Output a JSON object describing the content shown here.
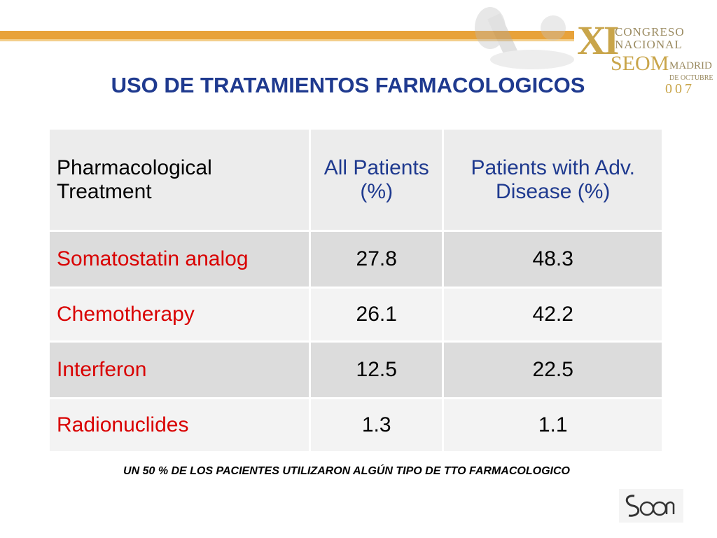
{
  "congress": {
    "roman": "XI",
    "line1": "CONGRESO",
    "line2": "NACIONAL",
    "society": "SEOM",
    "city": "MADRID",
    "date": "DE OCTUBRE",
    "year": "007"
  },
  "title": "USO DE TRATAMIENTOS FARMACOLOGICOS",
  "table": {
    "headers": [
      "Pharmacological Treatment",
      "All Patients (%)",
      "Patients with Adv. Disease (%)"
    ],
    "rows": [
      {
        "treatment": "Somatostatin analog",
        "all": "27.8",
        "adv": "48.3"
      },
      {
        "treatment": "Chemotherapy",
        "all": "26.1",
        "adv": "42.2"
      },
      {
        "treatment": "Interferon",
        "all": "12.5",
        "adv": "22.5"
      },
      {
        "treatment": "Radionuclides",
        "all": "1.3",
        "adv": "1.1"
      }
    ]
  },
  "footer": "UN 50 % DE LOS PACIENTES UTILIZARON ALGÚN TIPO DE TTO FARMACOLOGICO",
  "colors": {
    "accent_bar": "#e8a23a",
    "title": "#1f3a8f",
    "treatment_text": "#d90000",
    "logo_gold": "#c9a54a"
  }
}
